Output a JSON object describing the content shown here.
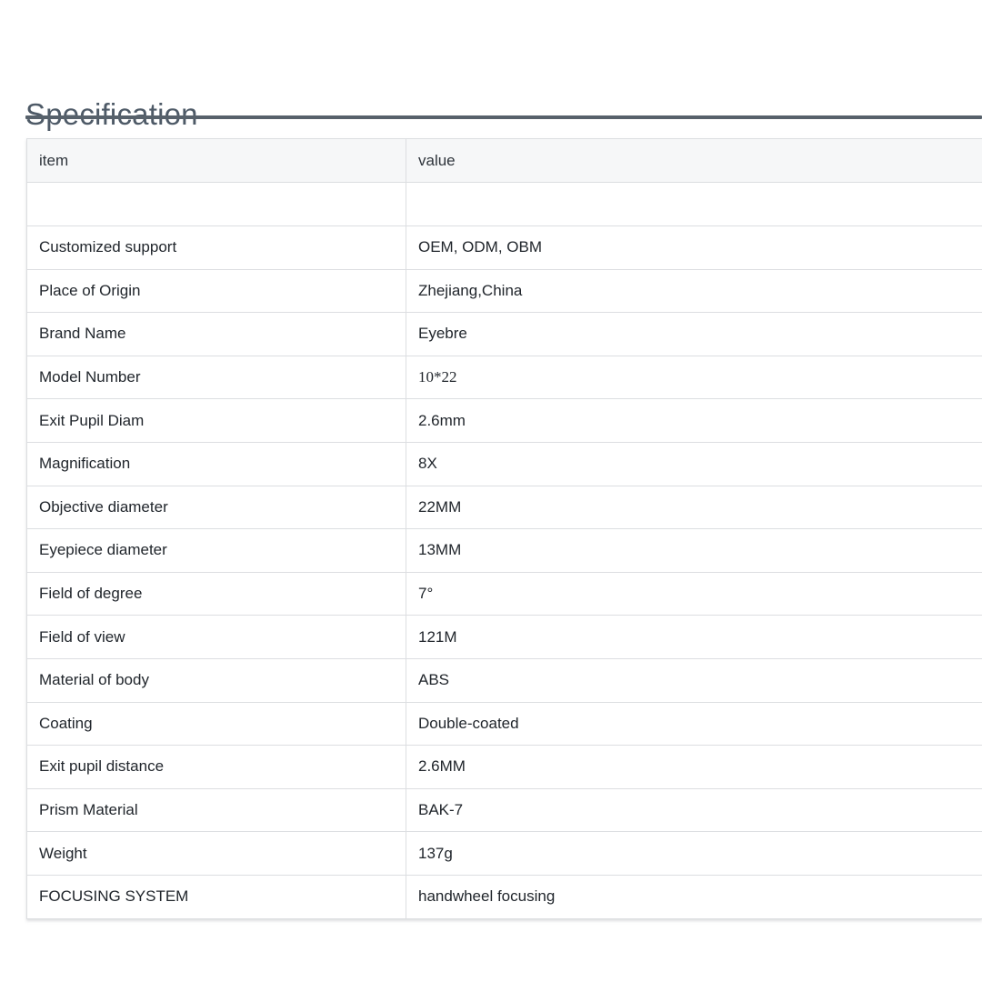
{
  "section": {
    "title": "Specification"
  },
  "colors": {
    "title_text": "#4e5a67",
    "divider": "#57616b",
    "table_border": "#dcdee1",
    "header_bg": "#f6f7f8",
    "body_text": "#21262c"
  },
  "table": {
    "headers": [
      "item",
      "value"
    ],
    "rows": [
      {
        "item": "",
        "value": "",
        "serif": false
      },
      {
        "item": "Customized support",
        "value": "OEM, ODM, OBM",
        "serif": false
      },
      {
        "item": "Place of Origin",
        "value": "Zhejiang,China",
        "serif": false
      },
      {
        "item": "Brand Name",
        "value": "Eyebre",
        "serif": false
      },
      {
        "item": "Model Number",
        "value": "10*22",
        "serif": true
      },
      {
        "item": "Exit Pupil Diam",
        "value": "2.6mm",
        "serif": false
      },
      {
        "item": "Magnification",
        "value": "8X",
        "serif": false
      },
      {
        "item": "Objective diameter",
        "value": "22MM",
        "serif": false
      },
      {
        "item": "Eyepiece diameter",
        "value": "13MM",
        "serif": false
      },
      {
        "item": "Field of degree",
        "value": "7°",
        "serif": false
      },
      {
        "item": "Field of view",
        "value": "121M",
        "serif": false
      },
      {
        "item": "Material of body",
        "value": "ABS",
        "serif": false
      },
      {
        "item": "Coating",
        "value": "Double-coated",
        "serif": false
      },
      {
        "item": "Exit pupil distance",
        "value": "2.6MM",
        "serif": false
      },
      {
        "item": "Prism Material",
        "value": "BAK-7",
        "serif": false
      },
      {
        "item": "Weight",
        "value": "137g",
        "serif": false
      },
      {
        "item": "FOCUSING SYSTEM",
        "value": "handwheel focusing",
        "serif": false
      }
    ]
  }
}
